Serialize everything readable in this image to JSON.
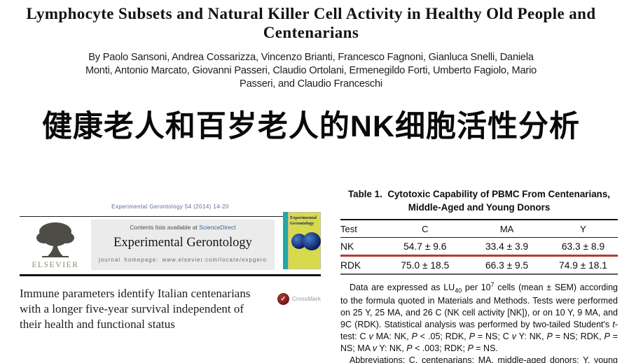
{
  "paper": {
    "title": "Lymphocyte Subsets and Natural Killer Cell Activity in Healthy Old People and Centenarians",
    "authors": "By Paolo Sansoni, Andrea Cossarizza, Vincenzo Brianti, Francesco Fagnoni, Gianluca Snelli, Daniela Monti, Antonio Marcato, Giovanni Passeri, Claudio Ortolani, Ermenegildo Forti, Umberto Fagiolo, Mario Passeri, and Claudio Franceschi",
    "chinese_heading": "健康老人和百岁老人的NK细胞活性分析"
  },
  "journal": {
    "citation": "Experimental Gerontology 54 (2014) 14-20",
    "contents_prefix": "Contents lists available at ",
    "contents_link": "ScienceDirect",
    "journal_title": "Experimental Gerontology",
    "homepage": "journal homepage: www.elsevier.com/locate/expgero",
    "publisher": "ELSEVIER",
    "cover_title": "Experimental Gerontology",
    "article_title": "Immune parameters identify Italian centenarians with a longer five-year survival independent of their health and functional status",
    "crossmark_label": "CrossMark"
  },
  "table": {
    "caption_label": "Table 1.",
    "caption_line1": "Cytotoxic Capability of PBMC From Centenarians,",
    "caption_line2": "Middle-Aged and Young Donors",
    "headers": [
      "Test",
      "C",
      "MA",
      "Y"
    ],
    "rows": [
      {
        "test": "NK",
        "c": "54.7 ± 9.6",
        "ma": "33.4 ± 3.9",
        "y": "63.3 ± 8.9"
      },
      {
        "test": "RDK",
        "c": "75.0 ± 18.5",
        "ma": "66.3 ± 9.5",
        "y": "74.9 ± 18.1"
      }
    ],
    "footnote_rich": [
      {
        "t": "Data are expressed as LU"
      },
      {
        "t": "40",
        "s": "sub"
      },
      {
        "t": " per 10"
      },
      {
        "t": "7",
        "s": "sup"
      },
      {
        "t": " cells (mean ± SEM) according to the formula quoted in Materials and Methods. Tests were performed on 25 Y, 25 MA, and 26 C (NK cell activity [NK]), or on 10 Y, 9 MA, and 9C (RDK). Statistical analysis was performed by two-tailed Student's "
      },
      {
        "t": "t",
        "s": "i"
      },
      {
        "t": "-test: C "
      },
      {
        "t": "v",
        "s": "i"
      },
      {
        "t": " MA: NK, "
      },
      {
        "t": "P",
        "s": "i"
      },
      {
        "t": " < .05; RDK, "
      },
      {
        "t": "P",
        "s": "i"
      },
      {
        "t": " = NS; C "
      },
      {
        "t": "v",
        "s": "i"
      },
      {
        "t": " Y: NK, "
      },
      {
        "t": "P",
        "s": "i"
      },
      {
        "t": " = NS; RDK, "
      },
      {
        "t": "P",
        "s": "i"
      },
      {
        "t": " = NS; MA "
      },
      {
        "t": "v",
        "s": "i"
      },
      {
        "t": " Y: NK, "
      },
      {
        "t": "P",
        "s": "i"
      },
      {
        "t": " < .003; RDK; "
      },
      {
        "t": "P",
        "s": "i"
      },
      {
        "t": " = NS."
      }
    ],
    "abbreviations": "Abbreviations: C, centenarians; MA, middle-aged donors; Y, young donors; NS, not significant."
  },
  "chart_data": {
    "type": "table",
    "title": "Table 1. Cytotoxic Capability of PBMC From Centenarians, Middle-Aged and Young Donors",
    "categories": [
      "C",
      "MA",
      "Y"
    ],
    "series": [
      {
        "name": "NK",
        "values": [
          "54.7 ± 9.6",
          "33.4 ± 3.9",
          "63.3 ± 8.9"
        ]
      },
      {
        "name": "RDK",
        "values": [
          "75.0 ± 18.5",
          "66.3 ± 9.5",
          "74.9 ± 18.1"
        ]
      }
    ]
  },
  "colors": {
    "highlight_line": "#b23b34",
    "sciencedirect_link": "#3a64aa",
    "cover_teal": "#23a7a7",
    "cover_yellow": "#d9d94e",
    "crossmark_maroon": "#6d1513",
    "graybox": "#ebebeb"
  }
}
